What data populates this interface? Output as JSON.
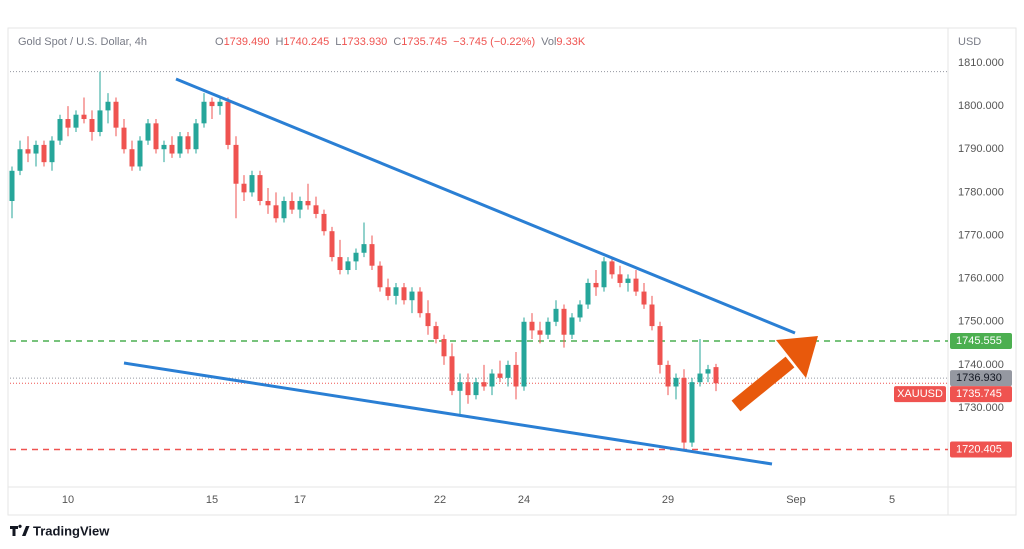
{
  "chart_data": {
    "type": "candlestick",
    "title": "Gold Spot / U.S. Dollar, 4h",
    "ohlc_legend": [
      {
        "label": "O",
        "value": "1739.490"
      },
      {
        "label": "H",
        "value": "1740.245"
      },
      {
        "label": "L",
        "value": "1733.930"
      },
      {
        "label": "C",
        "value": "1735.745"
      }
    ],
    "change": "−3.745 (−0.22%)",
    "volume_label": "Vol",
    "volume": "9.33K",
    "currency": "USD",
    "symbol": "XAUUSD",
    "brand": "TradingView",
    "up_color": "#26a69a",
    "down_color": "#ef5350",
    "x": [
      0,
      1,
      2,
      3,
      4,
      5,
      6,
      7,
      8,
      9,
      10,
      11,
      12,
      13,
      14,
      15,
      16,
      17,
      18,
      19,
      20,
      21,
      22,
      23,
      24,
      25,
      26,
      27,
      28,
      29,
      30,
      31,
      32,
      33,
      34,
      35,
      36,
      37,
      38,
      39,
      40,
      41,
      42,
      43,
      44,
      45,
      46,
      47,
      48,
      49,
      50,
      51,
      52,
      53,
      54,
      55,
      56,
      57,
      58,
      59,
      60,
      61,
      62,
      63,
      64,
      65,
      66,
      67,
      68,
      69,
      70,
      71,
      72,
      73,
      74,
      75,
      76,
      77,
      78,
      79,
      80,
      81,
      82,
      83,
      84,
      85,
      86,
      87,
      88
    ],
    "open": [
      1778,
      1785,
      1790,
      1789,
      1791,
      1787,
      1792,
      1797,
      1795,
      1798,
      1797,
      1794,
      1799,
      1801,
      1795,
      1790,
      1786,
      1792,
      1796,
      1790,
      1791,
      1789,
      1793,
      1790,
      1796,
      1801,
      1800,
      1801,
      1791,
      1782,
      1780,
      1784,
      1778,
      1777,
      1774,
      1778,
      1776,
      1778,
      1777,
      1775,
      1771,
      1765,
      1762,
      1764,
      1766,
      1768,
      1763,
      1758,
      1756,
      1758,
      1755,
      1757,
      1752,
      1749,
      1746,
      1742,
      1734,
      1736,
      1733,
      1736,
      1735,
      1738,
      1737,
      1740,
      1735,
      1750,
      1748,
      1747,
      1750,
      1753,
      1747,
      1751,
      1754,
      1759,
      1758,
      1764,
      1761,
      1759,
      1760,
      1757,
      1754,
      1749,
      1740,
      1735,
      1737,
      1722,
      1736,
      1738,
      1739.49
    ],
    "high": [
      1786,
      1792,
      1793,
      1792,
      1792,
      1793,
      1798,
      1800,
      1799,
      1802,
      1799,
      1808,
      1803,
      1802,
      1797,
      1792,
      1793,
      1797,
      1797,
      1792,
      1793,
      1794,
      1794,
      1797,
      1803,
      1802,
      1802,
      1802,
      1793,
      1784,
      1785,
      1785,
      1781,
      1780,
      1779,
      1780,
      1779,
      1782,
      1779,
      1776,
      1772,
      1769,
      1765,
      1767,
      1773,
      1770,
      1764,
      1760,
      1759,
      1759,
      1758,
      1758,
      1755,
      1750,
      1747,
      1745,
      1738,
      1738,
      1737,
      1740,
      1739,
      1741,
      1741,
      1743,
      1751,
      1752,
      1750,
      1751,
      1755,
      1754,
      1752,
      1755,
      1760,
      1762,
      1765,
      1765,
      1763,
      1761,
      1762,
      1759,
      1756,
      1750,
      1741,
      1738,
      1739,
      1737,
      1746,
      1740,
      1740.245
    ],
    "low": [
      1774,
      1784,
      1787,
      1786,
      1786,
      1785,
      1791,
      1793,
      1794,
      1796,
      1792,
      1793,
      1796,
      1793,
      1789,
      1785,
      1785,
      1791,
      1789,
      1787,
      1788,
      1788,
      1789,
      1789,
      1795,
      1797,
      1798,
      1790,
      1774,
      1778,
      1779,
      1777,
      1775,
      1773,
      1773,
      1775,
      1774,
      1776,
      1774,
      1770,
      1764,
      1761,
      1761,
      1762,
      1765,
      1762,
      1757,
      1755,
      1754,
      1754,
      1752,
      1751,
      1747,
      1745,
      1740,
      1733,
      1728,
      1731,
      1732,
      1734,
      1733,
      1736,
      1735,
      1732,
      1734,
      1746,
      1745,
      1746,
      1749,
      1744,
      1746,
      1750,
      1753,
      1756,
      1757,
      1760,
      1758,
      1757,
      1756,
      1753,
      1748,
      1738,
      1733,
      1732,
      1720,
      1721,
      1735,
      1736,
      1733.93
    ],
    "close": [
      1785,
      1790,
      1789,
      1791,
      1787,
      1792,
      1797,
      1795,
      1798,
      1797,
      1794,
      1799,
      1801,
      1795,
      1790,
      1786,
      1792,
      1796,
      1790,
      1791,
      1789,
      1793,
      1790,
      1796,
      1801,
      1800,
      1801,
      1791,
      1782,
      1780,
      1784,
      1778,
      1777,
      1774,
      1778,
      1776,
      1778,
      1777,
      1775,
      1771,
      1765,
      1762,
      1764,
      1766,
      1768,
      1763,
      1758,
      1756,
      1758,
      1755,
      1757,
      1752,
      1749,
      1746,
      1742,
      1734,
      1736,
      1733,
      1736,
      1735,
      1738,
      1737,
      1740,
      1735,
      1750,
      1748,
      1747,
      1750,
      1753,
      1747,
      1751,
      1754,
      1759,
      1758,
      1764,
      1761,
      1759,
      1760,
      1757,
      1754,
      1749,
      1740,
      1735,
      1737,
      1722,
      1736,
      1738,
      1739,
      1735.745
    ],
    "xlim": [
      -0.25,
      117
    ],
    "xticks": [
      {
        "value": 7,
        "label": "10"
      },
      {
        "value": 25,
        "label": "15"
      },
      {
        "value": 36,
        "label": "17"
      },
      {
        "value": 53.5,
        "label": "22"
      },
      {
        "value": 64,
        "label": "24"
      },
      {
        "value": 82,
        "label": "29"
      },
      {
        "value": 98,
        "label": "Sep"
      },
      {
        "value": 110,
        "label": "5"
      }
    ],
    "ylim": [
      1711.7,
      1818.1
    ],
    "yticks": [
      {
        "value": 1730,
        "label": "1730.000"
      },
      {
        "value": 1740,
        "label": "1740.000"
      },
      {
        "value": 1750,
        "label": "1750.000"
      },
      {
        "value": 1760,
        "label": "1760.000"
      },
      {
        "value": 1770,
        "label": "1770.000"
      },
      {
        "value": 1780,
        "label": "1780.000"
      },
      {
        "value": 1790,
        "label": "1790.000"
      },
      {
        "value": 1800,
        "label": "1800.000"
      },
      {
        "value": 1810,
        "label": "1810.000"
      }
    ],
    "high_line": 1808,
    "levels": [
      {
        "value": 1745.555,
        "label": "1745.555",
        "color": "#4caf50",
        "style": "dashed"
      },
      {
        "value": 1736.93,
        "label": "1736.930",
        "color": "#9598a1",
        "style": "dotted"
      },
      {
        "value": 1735.745,
        "label": "1735.745",
        "color": "#ef5350",
        "style": "dotted"
      },
      {
        "value": 1720.405,
        "label": "1720.405",
        "color": "#ef5350",
        "style": "dashed"
      }
    ]
  }
}
